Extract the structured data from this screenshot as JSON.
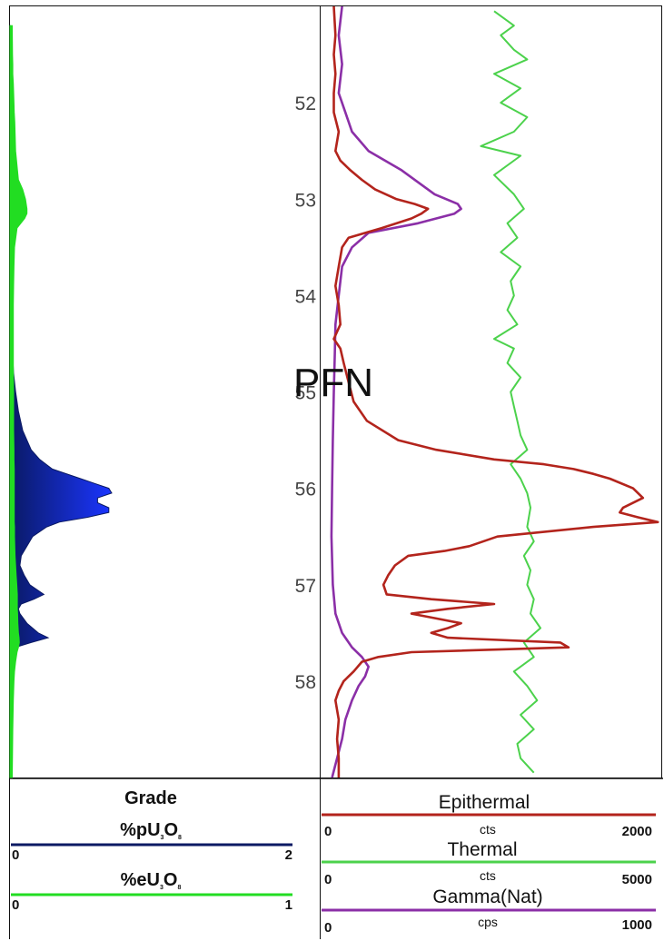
{
  "overlay_text": "PFN",
  "colors": {
    "grade_p": "#0b1a63",
    "grade_p_fill_deep": "#0a1a66",
    "grade_p_fill_bright": "#1b35ff",
    "grade_e": "#22dd22",
    "epithermal": "#b3241c",
    "thermal": "#4cd24c",
    "gamma": "#8b2fa7",
    "axis": "#444444",
    "grid": "#111111"
  },
  "chart_data": [
    {
      "type": "area",
      "panel": "grade",
      "ylim": [
        51.0,
        59.0
      ],
      "y_reversed": true,
      "depth": [
        51.2,
        51.5,
        51.6,
        51.7,
        51.8,
        52.0,
        52.1,
        52.2,
        52.5,
        52.8,
        52.9,
        53.0,
        53.1,
        53.15,
        53.2,
        53.3,
        53.5,
        53.7,
        53.9,
        54.1,
        54.3,
        54.4,
        54.5,
        54.8,
        55.0,
        55.2,
        55.4,
        55.6,
        55.7,
        55.8,
        55.9,
        55.95,
        56.0,
        56.05,
        56.1,
        56.15,
        56.2,
        56.25,
        56.3,
        56.35,
        56.4,
        56.5,
        56.6,
        56.7,
        56.8,
        56.9,
        57.0,
        57.1,
        57.15,
        57.2,
        57.25,
        57.3,
        57.4,
        57.5,
        57.55,
        57.6,
        57.65,
        57.7,
        57.8,
        57.85,
        57.9,
        58.0,
        58.2,
        58.5,
        59.0
      ],
      "series": [
        {
          "values": [
            0.004,
            0.004,
            0.012,
            0.01,
            0.005,
            0.004,
            0.008,
            0.01,
            0.013,
            0.022,
            0.048,
            0.055,
            0.085,
            0.115,
            0.085,
            0.03,
            0.012,
            0.01,
            0.012,
            0.01,
            0.01,
            0.012,
            0.015,
            0.025,
            0.04,
            0.06,
            0.09,
            0.15,
            0.21,
            0.3,
            0.5,
            0.6,
            0.7,
            0.72,
            0.62,
            0.62,
            0.7,
            0.7,
            0.55,
            0.35,
            0.26,
            0.16,
            0.12,
            0.08,
            0.07,
            0.1,
            0.14,
            0.24,
            0.17,
            0.08,
            0.06,
            0.07,
            0.12,
            0.2,
            0.27,
            0.15,
            0.04,
            0.015,
            0.01,
            0.03,
            0.018,
            0.01,
            0.008,
            0.006,
            0.005
          ]
        },
        {
          "values": [
            0.008,
            0.009,
            0.01,
            0.01,
            0.012,
            0.014,
            0.015,
            0.017,
            0.02,
            0.03,
            0.045,
            0.055,
            0.06,
            0.06,
            0.052,
            0.025,
            0.016,
            0.014,
            0.013,
            0.012,
            0.012,
            0.012,
            0.012,
            0.012,
            0.013,
            0.013,
            0.013,
            0.014,
            0.014,
            0.015,
            0.015,
            0.015,
            0.015,
            0.015,
            0.015,
            0.015,
            0.015,
            0.015,
            0.015,
            0.015,
            0.016,
            0.016,
            0.017,
            0.018,
            0.02,
            0.022,
            0.024,
            0.026,
            0.026,
            0.026,
            0.026,
            0.027,
            0.028,
            0.03,
            0.032,
            0.033,
            0.03,
            0.025,
            0.02,
            0.018,
            0.016,
            0.014,
            0.012,
            0.01,
            0.008
          ]
        }
      ]
    },
    {
      "type": "line",
      "panel": "curves",
      "ylim": [
        51.0,
        59.0
      ],
      "y_reversed": true,
      "y_ticks": [
        "52",
        "53",
        "54",
        "55",
        "56",
        "57",
        "58"
      ],
      "series": [
        {
          "name": "Epithermal",
          "depth": [
            51.0,
            51.3,
            51.5,
            51.7,
            51.9,
            52.1,
            52.3,
            52.5,
            52.6,
            52.7,
            52.8,
            52.9,
            53.0,
            53.05,
            53.1,
            53.15,
            53.2,
            53.3,
            53.4,
            53.5,
            53.7,
            53.9,
            54.1,
            54.3,
            54.45,
            54.55,
            54.7,
            54.9,
            55.1,
            55.3,
            55.5,
            55.6,
            55.7,
            55.75,
            55.8,
            55.85,
            55.9,
            56.0,
            56.1,
            56.2,
            56.25,
            56.3,
            56.35,
            56.4,
            56.5,
            56.6,
            56.65,
            56.7,
            56.8,
            56.9,
            57.0,
            57.1,
            57.15,
            57.2,
            57.25,
            57.3,
            57.35,
            57.4,
            57.45,
            57.5,
            57.55,
            57.6,
            57.65,
            57.7,
            57.75,
            57.8,
            57.9,
            58.0,
            58.1,
            58.2,
            58.4,
            58.6,
            58.8,
            59.0
          ],
          "values": [
            30,
            40,
            30,
            40,
            30,
            30,
            60,
            40,
            70,
            130,
            200,
            280,
            410,
            520,
            600,
            560,
            500,
            320,
            120,
            80,
            60,
            40,
            60,
            70,
            30,
            70,
            90,
            120,
            150,
            230,
            420,
            650,
            1000,
            1300,
            1480,
            1600,
            1700,
            1840,
            1900,
            1780,
            1760,
            1870,
            1990,
            1600,
            1020,
            850,
            700,
            480,
            400,
            360,
            330,
            350,
            620,
            1000,
            720,
            500,
            650,
            800,
            720,
            620,
            720,
            1400,
            1450,
            500,
            300,
            200,
            150,
            90,
            60,
            40,
            60,
            50,
            60,
            60
          ]
        },
        {
          "name": "Thermal",
          "depth": [
            51.05,
            51.2,
            51.3,
            51.45,
            51.55,
            51.7,
            51.85,
            52.0,
            52.15,
            52.3,
            52.45,
            52.55,
            52.75,
            52.95,
            53.1,
            53.25,
            53.4,
            53.55,
            53.7,
            53.85,
            54.0,
            54.15,
            54.3,
            54.45,
            54.55,
            54.7,
            54.85,
            55.0,
            55.15,
            55.3,
            55.45,
            55.6,
            55.75,
            55.9,
            56.05,
            56.2,
            56.4,
            56.55,
            56.7,
            56.85,
            57.0,
            57.15,
            57.3,
            57.45,
            57.6,
            57.75,
            57.9,
            58.05,
            58.2,
            58.35,
            58.5,
            58.65,
            58.8,
            58.95
          ],
          "values": [
            2500,
            2800,
            2600,
            2800,
            3000,
            2500,
            2900,
            2600,
            3000,
            2800,
            2300,
            2900,
            2500,
            2800,
            2950,
            2700,
            2850,
            2600,
            2900,
            2750,
            2800,
            2700,
            2850,
            2500,
            2800,
            2700,
            2900,
            2750,
            2800,
            2850,
            2900,
            3000,
            2750,
            2900,
            3000,
            3050,
            3000,
            3100,
            2950,
            3050,
            3000,
            3100,
            3050,
            3200,
            2950,
            3100,
            2800,
            3000,
            3150,
            2900,
            3100,
            2850,
            2900,
            3100
          ]
        },
        {
          "name": "Gamma(Nat)",
          "depth": [
            51.0,
            51.3,
            51.6,
            51.9,
            52.1,
            52.3,
            52.5,
            52.7,
            52.85,
            52.95,
            53.05,
            53.1,
            53.15,
            53.25,
            53.35,
            53.5,
            53.7,
            54.0,
            54.3,
            54.6,
            55.0,
            55.5,
            56.0,
            56.5,
            57.0,
            57.3,
            57.5,
            57.65,
            57.75,
            57.85,
            57.95,
            58.05,
            58.2,
            58.4,
            58.6,
            58.8,
            59.0
          ],
          "values": [
            40,
            30,
            40,
            30,
            50,
            70,
            120,
            220,
            280,
            320,
            390,
            400,
            380,
            270,
            120,
            70,
            40,
            30,
            20,
            18,
            15,
            12,
            10,
            8,
            12,
            20,
            40,
            70,
            100,
            120,
            110,
            90,
            70,
            50,
            40,
            25,
            10
          ]
        }
      ]
    }
  ],
  "legend_left": {
    "title": "Grade",
    "rows": [
      {
        "label_main": "%pU",
        "label_sub": "3",
        "label_mid": "O",
        "label_sub2": "8",
        "min": "0",
        "max": "2"
      },
      {
        "label_main": "%eU",
        "label_sub": "3",
        "label_mid": "O",
        "label_sub2": "8",
        "min": "0",
        "max": "1"
      }
    ]
  },
  "legend_right": {
    "rows": [
      {
        "name": "Epithermal",
        "unit": "cts",
        "min": "0",
        "max": "2000"
      },
      {
        "name": "Thermal",
        "unit": "cts",
        "min": "0",
        "max": "5000"
      },
      {
        "name": "Gamma(Nat)",
        "unit": "cps",
        "min": "0",
        "max": "1000"
      }
    ]
  }
}
